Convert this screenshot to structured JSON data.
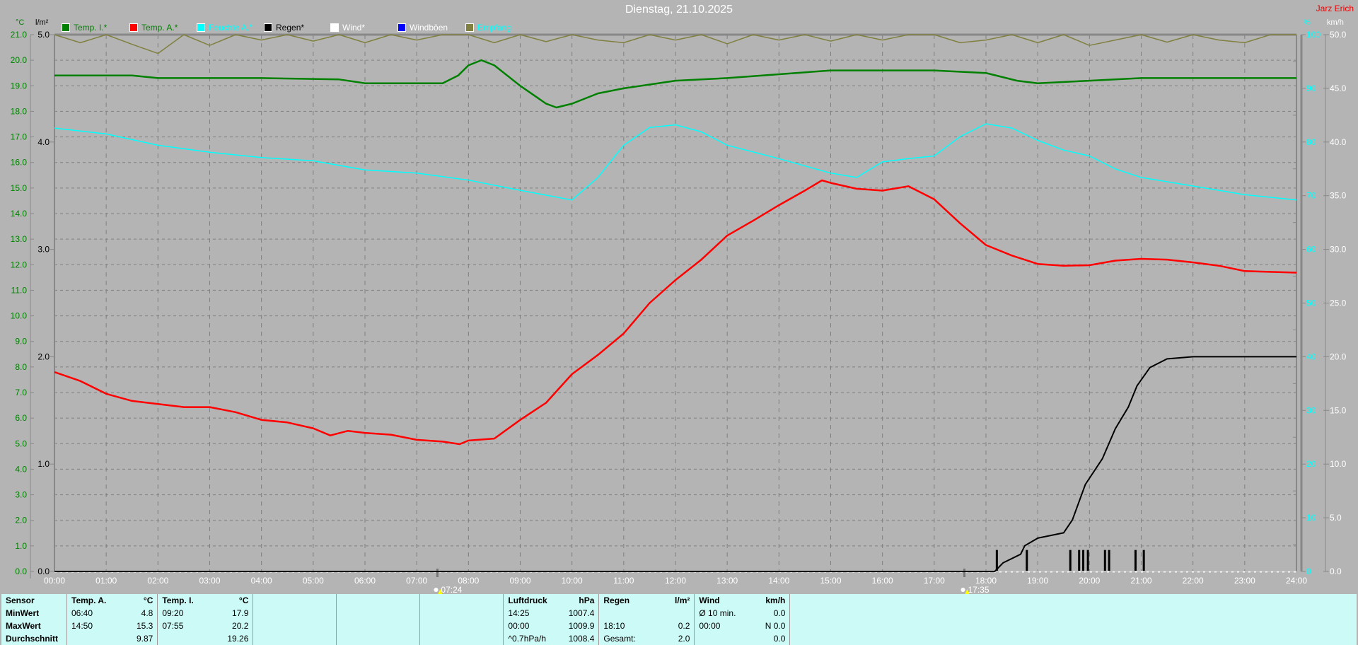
{
  "title": "Dienstag, 21.10.2025",
  "author": "Jarz Erich",
  "legend": [
    {
      "label": "Temp. I.*",
      "color": "#008000",
      "text_color": "#008000"
    },
    {
      "label": "Temp. A.*",
      "color": "#ff0000",
      "text_color": "#008000"
    },
    {
      "label": "Feuchte A.*",
      "color": "#00ffff",
      "text_color": "#00ffff"
    },
    {
      "label": "Regen*",
      "color": "#000000",
      "text_color": "#000000"
    },
    {
      "label": "Wind*",
      "color": "#ffffff",
      "text_color": "#ffffff"
    },
    {
      "label": "Windböen",
      "color": "#0000ff",
      "text_color": "#ffffff"
    },
    {
      "label": "Empfang",
      "color": "#808040",
      "text_color": "#00ffff"
    }
  ],
  "axes": {
    "left_temp": {
      "unit": "°C",
      "range": [
        0,
        21
      ],
      "step": 1,
      "color": "#008000"
    },
    "left_rain": {
      "unit": "l/m²",
      "range": [
        0,
        5
      ],
      "step": 1,
      "color": "#000000"
    },
    "right_hum": {
      "unit": "%",
      "range": [
        0,
        100
      ],
      "step": 10,
      "color": "#00ffff"
    },
    "right_wind": {
      "unit": "km/h",
      "range": [
        0,
        50
      ],
      "step": 5,
      "color": "#ffffff"
    },
    "x": {
      "range": [
        0,
        24
      ],
      "ticks": [
        "00:00",
        "01:00",
        "02:00",
        "03:00",
        "04:00",
        "05:00",
        "06:00",
        "07:00",
        "08:00",
        "09:00",
        "10:00",
        "11:00",
        "12:00",
        "13:00",
        "14:00",
        "15:00",
        "16:00",
        "17:00",
        "18:00",
        "19:00",
        "20:00",
        "21:00",
        "22:00",
        "23:00",
        "24:00"
      ]
    },
    "grid": true
  },
  "sun": {
    "sunrise": "07:24",
    "sunrise_h": 7.4,
    "sunset": "17:35",
    "sunset_h": 17.583
  },
  "chart_data": {
    "type": "line",
    "title": "Dienstag, 21.10.2025",
    "series": [
      {
        "name": "Temp. I.*",
        "axis": "left_temp",
        "color": "#008000",
        "x": [
          0,
          1.5,
          2,
          4,
          5.5,
          6,
          7.5,
          7.8,
          8,
          8.25,
          8.5,
          9,
          9.5,
          9.7,
          10,
          10.5,
          11,
          12,
          13,
          14,
          15,
          17,
          18,
          18.6,
          19,
          20,
          21,
          24
        ],
        "y": [
          19.4,
          19.4,
          19.3,
          19.3,
          19.25,
          19.1,
          19.1,
          19.4,
          19.8,
          20.0,
          19.8,
          19.0,
          18.3,
          18.15,
          18.3,
          18.7,
          18.9,
          19.2,
          19.3,
          19.45,
          19.6,
          19.6,
          19.5,
          19.2,
          19.1,
          19.2,
          19.3,
          19.3
        ]
      },
      {
        "name": "Temp. A.*",
        "axis": "left_temp",
        "color": "#ff0000",
        "x": [
          0,
          0.5,
          1,
          1.5,
          2,
          2.5,
          3,
          3.5,
          4,
          4.5,
          5,
          5.33,
          5.67,
          6,
          6.5,
          7,
          7.5,
          7.83,
          8,
          8.5,
          9,
          9.5,
          10,
          10.5,
          11,
          11.5,
          12,
          12.5,
          13,
          13.5,
          14,
          14.5,
          14.83,
          15,
          15.5,
          16,
          16.5,
          17,
          17.5,
          18,
          18.5,
          19,
          19.5,
          20,
          20.5,
          21,
          21.5,
          22,
          22.5,
          23,
          24
        ],
        "y": [
          7.8,
          7.45,
          6.95,
          6.67,
          6.55,
          6.43,
          6.43,
          6.23,
          5.93,
          5.83,
          5.6,
          5.32,
          5.5,
          5.42,
          5.35,
          5.15,
          5.08,
          4.98,
          5.12,
          5.2,
          5.93,
          6.6,
          7.72,
          8.47,
          9.31,
          10.5,
          11.4,
          12.2,
          13.14,
          13.72,
          14.33,
          14.9,
          15.3,
          15.2,
          14.97,
          14.9,
          15.07,
          14.56,
          13.62,
          12.77,
          12.36,
          12.03,
          11.96,
          11.98,
          12.16,
          12.23,
          12.2,
          12.09,
          11.96,
          11.75,
          11.69
        ]
      },
      {
        "name": "Feuchte A.*",
        "axis": "right_hum",
        "color": "#00ffff",
        "x": [
          0,
          1,
          2,
          3,
          4,
          5,
          6,
          7,
          8,
          9,
          10,
          10.5,
          11,
          11.5,
          12,
          12.5,
          13,
          14,
          15,
          15.5,
          16,
          16.5,
          17,
          17.5,
          18,
          18.5,
          19,
          19.5,
          20,
          20.5,
          21,
          22,
          23,
          24
        ],
        "y": [
          82.6,
          81.5,
          79.4,
          78.1,
          77.1,
          76.5,
          74.8,
          74.2,
          72.9,
          71.0,
          69.2,
          73.4,
          79.4,
          82.7,
          83.2,
          81.9,
          79.4,
          76.9,
          74.2,
          73.4,
          76.3,
          76.9,
          77.4,
          81.0,
          83.4,
          82.6,
          80.3,
          78.5,
          77.4,
          75.0,
          73.4,
          71.8,
          70.2,
          69.2
        ]
      },
      {
        "name": "Regen*",
        "axis": "left_rain",
        "color": "#000000",
        "x": [
          0,
          18.17,
          18.33,
          18.67,
          18.75,
          19,
          19.5,
          19.67,
          19.92,
          20.25,
          20.5,
          20.75,
          20.92,
          21.17,
          21.5,
          22,
          24
        ],
        "y": [
          0,
          0,
          0.08,
          0.16,
          0.24,
          0.31,
          0.36,
          0.48,
          0.81,
          1.05,
          1.33,
          1.53,
          1.73,
          1.9,
          1.98,
          2.0,
          2.0
        ]
      },
      {
        "name": "Wind*",
        "axis": "right_wind",
        "color": "#ffffff",
        "x": [
          0,
          24
        ],
        "y": [
          0,
          0
        ]
      },
      {
        "name": "Empfang",
        "axis": "right_hum",
        "color": "#808040",
        "x": [
          0,
          0.5,
          1,
          1.5,
          2,
          2.5,
          3,
          3.5,
          4,
          4.5,
          5,
          5.5,
          6,
          6.5,
          7,
          7.5,
          8,
          8.5,
          9,
          9.5,
          10,
          10.5,
          11,
          11.5,
          12,
          12.5,
          13,
          13.5,
          14,
          14.5,
          15,
          15.5,
          16,
          16.5,
          17,
          17.5,
          18,
          18.5,
          19,
          19.5,
          20,
          20.5,
          21,
          21.5,
          22,
          22.5,
          23,
          23.5,
          24
        ],
        "y": [
          100,
          98.5,
          100,
          98.2,
          96.5,
          100,
          98,
          100,
          99,
          100,
          98.8,
          100,
          98.5,
          100,
          99,
          100,
          100,
          98.5,
          100,
          98.7,
          100,
          99,
          98.5,
          100,
          99,
          100,
          98.3,
          100,
          99,
          100,
          98.8,
          100,
          99,
          100,
          100,
          98.5,
          99,
          100,
          98.5,
          100,
          98,
          99,
          100,
          98.6,
          100,
          99,
          98.5,
          100,
          100
        ]
      }
    ],
    "rain_events": {
      "name": "Regen",
      "axis": "left_rain",
      "color": "#000000",
      "x": [
        18.21,
        18.79,
        19.63,
        19.8,
        19.88,
        19.97,
        20.3,
        20.38,
        20.89,
        21.05
      ],
      "y": [
        0.2,
        0.2,
        0.2,
        0.2,
        0.2,
        0.2,
        0.2,
        0.2,
        0.2,
        0.2
      ]
    }
  },
  "stats": {
    "header": [
      "Sensor",
      "Temp. A.",
      "°C",
      "Temp. I.",
      "°C",
      "",
      "",
      "",
      "Luftdruck",
      "hPa",
      "Regen",
      "l/m²",
      "Wind",
      "km/h"
    ],
    "rows": [
      [
        "MinWert",
        "06:40",
        "4.8",
        "09:20",
        "17.9",
        "",
        "",
        "",
        "14:25",
        "1007.4",
        "",
        "",
        "Ø 10 min.",
        "0.0"
      ],
      [
        "MaxWert",
        "14:50",
        "15.3",
        "07:55",
        "20.2",
        "",
        "",
        "",
        "00:00",
        "1009.9",
        "18:10",
        "0.2",
        "00:00",
        "N 0.0"
      ],
      [
        "Durchschnitt",
        "",
        "9.87",
        "",
        "19.26",
        "",
        "",
        "",
        "^0.7hPa/h",
        "1008.4",
        "Gesamt:",
        "2.0",
        "",
        "0.0"
      ]
    ]
  }
}
